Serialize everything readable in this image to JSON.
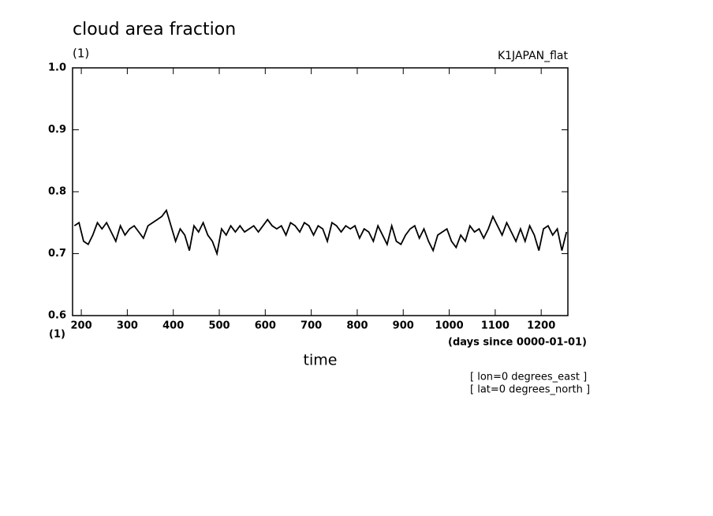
{
  "chart_data": {
    "type": "line",
    "title": "cloud area fraction",
    "units": "(1)",
    "dataset": "K1JAPAN_flat",
    "y_units": "(1)",
    "x_label": "time",
    "x_units": "(days since 0000-01-01)",
    "annotations": [
      "[ lon=0 degrees_east ]",
      "[ lat=0 degrees_north ]"
    ],
    "x": [
      185,
      195,
      205,
      215,
      225,
      235,
      245,
      255,
      265,
      275,
      285,
      295,
      305,
      315,
      325,
      335,
      345,
      355,
      365,
      375,
      385,
      395,
      405,
      415,
      425,
      435,
      445,
      455,
      465,
      475,
      485,
      495,
      505,
      515,
      525,
      535,
      545,
      555,
      565,
      575,
      585,
      595,
      605,
      615,
      625,
      635,
      645,
      655,
      665,
      675,
      685,
      695,
      705,
      715,
      725,
      735,
      745,
      755,
      765,
      775,
      785,
      795,
      805,
      815,
      825,
      835,
      845,
      855,
      865,
      875,
      885,
      895,
      905,
      915,
      925,
      935,
      945,
      955,
      965,
      975,
      985,
      995,
      1005,
      1015,
      1025,
      1035,
      1045,
      1055,
      1065,
      1075,
      1085,
      1095,
      1105,
      1115,
      1125,
      1135,
      1145,
      1155,
      1165,
      1175,
      1185,
      1195,
      1205,
      1215,
      1225,
      1235,
      1245,
      1255
    ],
    "series": [
      {
        "color": "#000000",
        "values": [
          0.745,
          0.75,
          0.72,
          0.715,
          0.73,
          0.75,
          0.74,
          0.75,
          0.735,
          0.72,
          0.745,
          0.73,
          0.74,
          0.745,
          0.735,
          0.725,
          0.745,
          0.75,
          0.755,
          0.76,
          0.77,
          0.745,
          0.72,
          0.74,
          0.73,
          0.705,
          0.745,
          0.735,
          0.75,
          0.73,
          0.72,
          0.7,
          0.74,
          0.73,
          0.745,
          0.735,
          0.745,
          0.735,
          0.74,
          0.745,
          0.735,
          0.745,
          0.755,
          0.745,
          0.74,
          0.745,
          0.73,
          0.75,
          0.745,
          0.735,
          0.75,
          0.745,
          0.73,
          0.745,
          0.74,
          0.72,
          0.75,
          0.745,
          0.735,
          0.745,
          0.74,
          0.745,
          0.725,
          0.74,
          0.735,
          0.72,
          0.745,
          0.73,
          0.715,
          0.745,
          0.72,
          0.715,
          0.73,
          0.74,
          0.745,
          0.725,
          0.74,
          0.72,
          0.705,
          0.73,
          0.735,
          0.74,
          0.72,
          0.71,
          0.73,
          0.72,
          0.745,
          0.735,
          0.74,
          0.725,
          0.74,
          0.76,
          0.745,
          0.73,
          0.75,
          0.735,
          0.72,
          0.74,
          0.72,
          0.745,
          0.73,
          0.705,
          0.74,
          0.745,
          0.73,
          0.74,
          0.705,
          0.735
        ]
      }
    ],
    "xlim": [
      181,
      1258
    ],
    "ylim": [
      0.6,
      1.0
    ],
    "xticks": [
      200,
      300,
      400,
      500,
      600,
      700,
      800,
      900,
      1000,
      1100,
      1200
    ],
    "yticks": [
      0.6,
      0.7,
      0.8,
      0.9,
      {
        "value": 1,
        "label": "1.0"
      }
    ]
  }
}
